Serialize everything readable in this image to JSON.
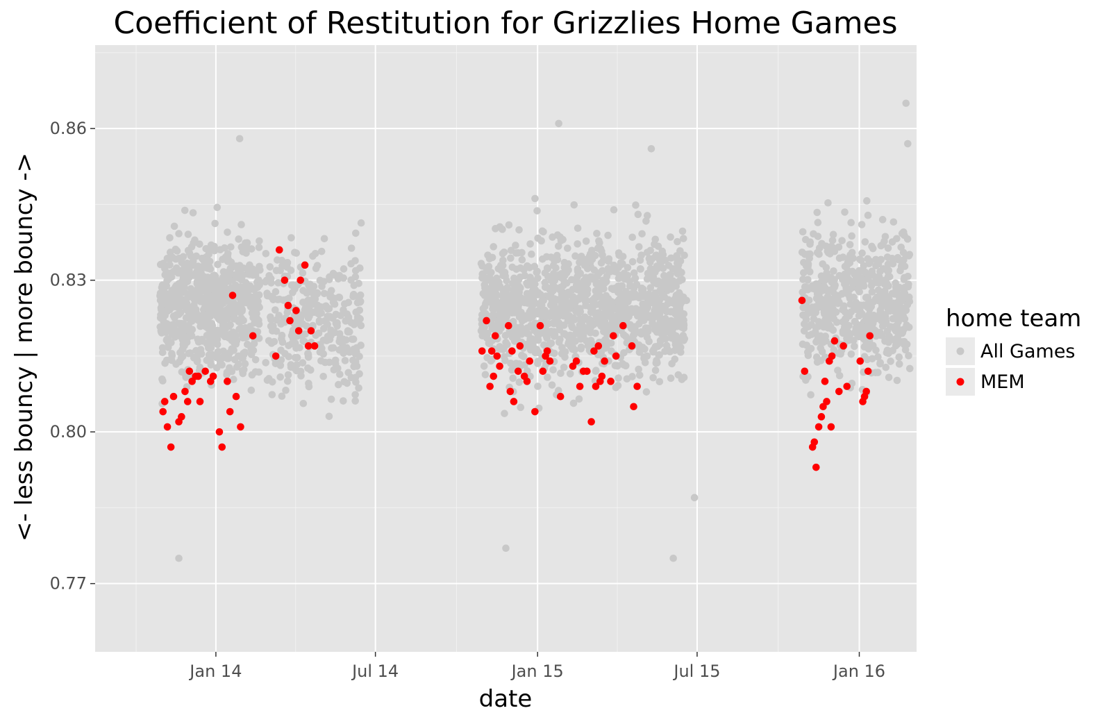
{
  "chart_data": {
    "type": "scatter",
    "title": "Coefficient of Restitution for Grizzlies Home Games",
    "xlabel": "date",
    "ylabel": "<- less bouncy | more bouncy ->",
    "x_ticks": [
      "2014-01-01",
      "2014-07-01",
      "2015-01-01",
      "2015-07-01",
      "2016-01-01"
    ],
    "x_tick_labels": [
      "Jan 14",
      "Jul 14",
      "Jan 15",
      "Jul 15",
      "Jan 16"
    ],
    "xlim": [
      "2013-08-17",
      "2016-03-06"
    ],
    "y_ticks": [
      0.77,
      0.8,
      0.83,
      0.86
    ],
    "y_tick_labels": [
      "0.77",
      "0.80",
      "0.83",
      "0.86"
    ],
    "ylim": [
      0.7565,
      0.8765
    ],
    "grid": true,
    "legend": {
      "title": "home team",
      "placement": "right",
      "entries": [
        {
          "label": "All Games",
          "color": "#c8c8c8"
        },
        {
          "label": "MEM",
          "color": "#ff0000"
        }
      ]
    },
    "background_color": "#e5e5e5",
    "series": [
      {
        "name": "All Games",
        "color": "#c8c8c8",
        "point_count_note": "dense cloud of shot-level points across three seasons",
        "clusters": [
          {
            "x_range": [
              "2013-10-29",
              "2014-02-20"
            ],
            "y_range": [
              0.792,
              0.858
            ],
            "center_y": 0.825
          },
          {
            "x_range": [
              "2014-02-26",
              "2014-06-15"
            ],
            "y_range": [
              0.794,
              0.854
            ],
            "center_y": 0.822
          },
          {
            "x_range": [
              "2014-10-29",
              "2015-06-17"
            ],
            "y_range": [
              0.775,
              0.861
            ],
            "center_y": 0.825
          },
          {
            "x_range": [
              "2015-10-28",
              "2016-02-28"
            ],
            "y_range": [
              0.797,
              0.865
            ],
            "center_y": 0.825
          }
        ],
        "points": [
          {
            "x": "2013-11-20",
            "y": 0.775
          },
          {
            "x": "2014-01-28",
            "y": 0.858
          },
          {
            "x": "2014-11-26",
            "y": 0.777
          },
          {
            "x": "2015-06-04",
            "y": 0.775
          },
          {
            "x": "2015-05-10",
            "y": 0.856
          },
          {
            "x": "2015-01-25",
            "y": 0.861
          },
          {
            "x": "2016-02-23",
            "y": 0.865
          },
          {
            "x": "2016-02-25",
            "y": 0.857
          },
          {
            "x": "2014-06-10",
            "y": 0.813
          },
          {
            "x": "2015-06-28",
            "y": 0.787
          },
          {
            "x": "2015-06-19",
            "y": 0.826
          }
        ]
      },
      {
        "name": "MEM",
        "color": "#ff0000",
        "points": [
          {
            "x": "2013-11-02",
            "y": 0.804
          },
          {
            "x": "2013-11-04",
            "y": 0.806
          },
          {
            "x": "2013-11-07",
            "y": 0.801
          },
          {
            "x": "2013-11-11",
            "y": 0.797
          },
          {
            "x": "2013-11-14",
            "y": 0.807
          },
          {
            "x": "2013-11-20",
            "y": 0.802
          },
          {
            "x": "2013-11-23",
            "y": 0.803
          },
          {
            "x": "2013-11-27",
            "y": 0.808
          },
          {
            "x": "2013-11-30",
            "y": 0.806
          },
          {
            "x": "2013-12-02",
            "y": 0.812
          },
          {
            "x": "2013-12-05",
            "y": 0.81
          },
          {
            "x": "2013-12-09",
            "y": 0.811
          },
          {
            "x": "2013-12-12",
            "y": 0.811
          },
          {
            "x": "2013-12-14",
            "y": 0.806
          },
          {
            "x": "2013-12-20",
            "y": 0.812
          },
          {
            "x": "2013-12-26",
            "y": 0.81
          },
          {
            "x": "2013-12-29",
            "y": 0.811
          },
          {
            "x": "2014-01-05",
            "y": 0.8
          },
          {
            "x": "2014-01-08",
            "y": 0.797
          },
          {
            "x": "2014-01-14",
            "y": 0.81
          },
          {
            "x": "2014-01-17",
            "y": 0.804
          },
          {
            "x": "2014-01-20",
            "y": 0.827
          },
          {
            "x": "2014-01-24",
            "y": 0.807
          },
          {
            "x": "2014-01-29",
            "y": 0.801
          },
          {
            "x": "2014-02-12",
            "y": 0.819
          },
          {
            "x": "2014-03-10",
            "y": 0.815
          },
          {
            "x": "2014-03-14",
            "y": 0.836
          },
          {
            "x": "2014-03-20",
            "y": 0.83
          },
          {
            "x": "2014-03-24",
            "y": 0.825
          },
          {
            "x": "2014-03-26",
            "y": 0.822
          },
          {
            "x": "2014-04-02",
            "y": 0.824
          },
          {
            "x": "2014-04-05",
            "y": 0.82
          },
          {
            "x": "2014-04-07",
            "y": 0.83
          },
          {
            "x": "2014-04-12",
            "y": 0.833
          },
          {
            "x": "2014-04-16",
            "y": 0.817
          },
          {
            "x": "2014-04-19",
            "y": 0.82
          },
          {
            "x": "2014-04-23",
            "y": 0.817
          },
          {
            "x": "2014-10-30",
            "y": 0.816
          },
          {
            "x": "2014-11-04",
            "y": 0.822
          },
          {
            "x": "2014-11-08",
            "y": 0.809
          },
          {
            "x": "2014-11-10",
            "y": 0.816
          },
          {
            "x": "2014-11-12",
            "y": 0.811
          },
          {
            "x": "2014-11-14",
            "y": 0.819
          },
          {
            "x": "2014-11-16",
            "y": 0.815
          },
          {
            "x": "2014-11-19",
            "y": 0.813
          },
          {
            "x": "2014-11-29",
            "y": 0.821
          },
          {
            "x": "2014-12-01",
            "y": 0.808
          },
          {
            "x": "2014-12-03",
            "y": 0.816
          },
          {
            "x": "2014-12-05",
            "y": 0.806
          },
          {
            "x": "2014-12-10",
            "y": 0.812
          },
          {
            "x": "2014-12-12",
            "y": 0.817
          },
          {
            "x": "2014-12-17",
            "y": 0.811
          },
          {
            "x": "2014-12-20",
            "y": 0.81
          },
          {
            "x": "2014-12-23",
            "y": 0.814
          },
          {
            "x": "2014-12-29",
            "y": 0.804
          },
          {
            "x": "2015-01-04",
            "y": 0.821
          },
          {
            "x": "2015-01-07",
            "y": 0.812
          },
          {
            "x": "2015-01-10",
            "y": 0.815
          },
          {
            "x": "2015-01-12",
            "y": 0.816
          },
          {
            "x": "2015-01-15",
            "y": 0.814
          },
          {
            "x": "2015-01-27",
            "y": 0.807
          },
          {
            "x": "2015-02-10",
            "y": 0.813
          },
          {
            "x": "2015-02-14",
            "y": 0.814
          },
          {
            "x": "2015-02-18",
            "y": 0.809
          },
          {
            "x": "2015-02-22",
            "y": 0.812
          },
          {
            "x": "2015-02-26",
            "y": 0.812
          },
          {
            "x": "2015-03-03",
            "y": 0.802
          },
          {
            "x": "2015-03-06",
            "y": 0.816
          },
          {
            "x": "2015-03-08",
            "y": 0.809
          },
          {
            "x": "2015-03-11",
            "y": 0.817
          },
          {
            "x": "2015-03-13",
            "y": 0.81
          },
          {
            "x": "2015-03-15",
            "y": 0.811
          },
          {
            "x": "2015-03-18",
            "y": 0.814
          },
          {
            "x": "2015-03-25",
            "y": 0.81
          },
          {
            "x": "2015-03-28",
            "y": 0.819
          },
          {
            "x": "2015-03-31",
            "y": 0.815
          },
          {
            "x": "2015-04-08",
            "y": 0.821
          },
          {
            "x": "2015-04-18",
            "y": 0.817
          },
          {
            "x": "2015-04-20",
            "y": 0.805
          },
          {
            "x": "2015-04-24",
            "y": 0.809
          },
          {
            "x": "2015-10-28",
            "y": 0.826
          },
          {
            "x": "2015-10-31",
            "y": 0.812
          },
          {
            "x": "2015-11-09",
            "y": 0.797
          },
          {
            "x": "2015-11-11",
            "y": 0.798
          },
          {
            "x": "2015-11-13",
            "y": 0.793
          },
          {
            "x": "2015-11-16",
            "y": 0.801
          },
          {
            "x": "2015-11-19",
            "y": 0.803
          },
          {
            "x": "2015-11-21",
            "y": 0.805
          },
          {
            "x": "2015-11-23",
            "y": 0.81
          },
          {
            "x": "2015-11-25",
            "y": 0.806
          },
          {
            "x": "2015-11-28",
            "y": 0.814
          },
          {
            "x": "2015-11-30",
            "y": 0.801
          },
          {
            "x": "2015-12-01",
            "y": 0.815
          },
          {
            "x": "2015-12-04",
            "y": 0.818
          },
          {
            "x": "2015-12-09",
            "y": 0.808
          },
          {
            "x": "2015-12-14",
            "y": 0.817
          },
          {
            "x": "2015-12-18",
            "y": 0.809
          },
          {
            "x": "2016-01-02",
            "y": 0.814
          },
          {
            "x": "2016-01-05",
            "y": 0.806
          },
          {
            "x": "2016-01-07",
            "y": 0.807
          },
          {
            "x": "2016-01-09",
            "y": 0.808
          },
          {
            "x": "2016-01-11",
            "y": 0.812
          },
          {
            "x": "2016-01-13",
            "y": 0.819
          }
        ]
      }
    ]
  }
}
